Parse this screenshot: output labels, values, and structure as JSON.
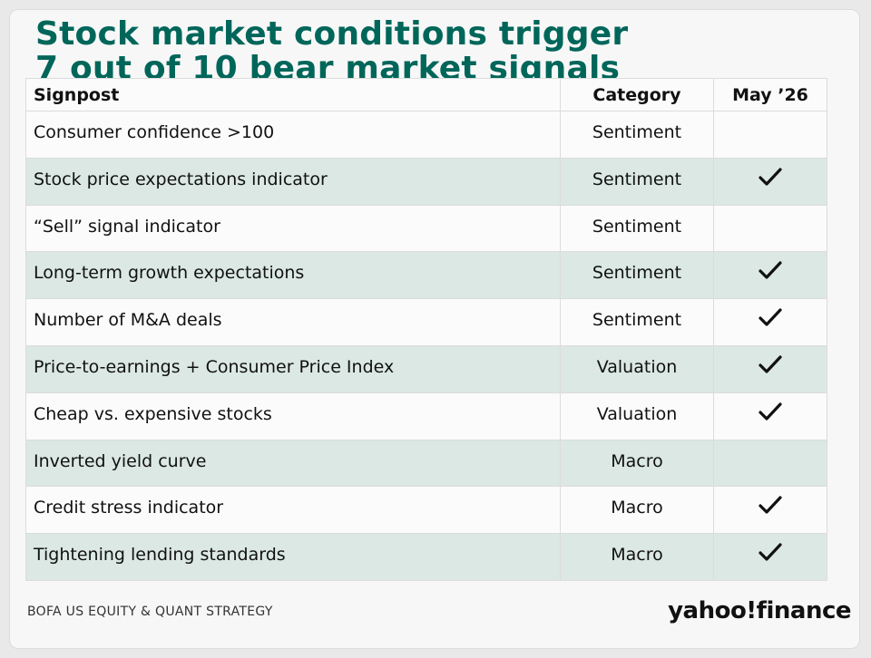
{
  "title": {
    "line1": "Stock market conditions trigger",
    "line2": "7 out of 10 bear market signals"
  },
  "chart_data": {
    "type": "table",
    "columns": [
      "Signpost",
      "Category",
      "May ’26"
    ],
    "rows": [
      {
        "signpost": "Consumer confidence >100",
        "category": "Sentiment",
        "triggered": false
      },
      {
        "signpost": "Stock price expectations indicator",
        "category": "Sentiment",
        "triggered": true
      },
      {
        "signpost": "“Sell” signal indicator",
        "category": "Sentiment",
        "triggered": false
      },
      {
        "signpost": "Long-term growth expectations",
        "category": "Sentiment",
        "triggered": true
      },
      {
        "signpost": "Number of M&A deals",
        "category": "Sentiment",
        "triggered": true
      },
      {
        "signpost": "Price-to-earnings + Consumer Price Index",
        "category": "Valuation",
        "triggered": true
      },
      {
        "signpost": "Cheap vs. expensive stocks",
        "category": "Valuation",
        "triggered": true
      },
      {
        "signpost": "Inverted yield curve",
        "category": "Macro",
        "triggered": false
      },
      {
        "signpost": "Credit stress indicator",
        "category": "Macro",
        "triggered": true
      },
      {
        "signpost": "Tightening lending standards",
        "category": "Macro",
        "triggered": true
      }
    ]
  },
  "footer": {
    "source": "BOFA US EQUITY & QUANT STRATEGY",
    "logo": "yahoo!finance"
  },
  "colors": {
    "title": "#00665a",
    "row_shade": "#dbe8e4",
    "row_plain": "#fbfbfb"
  },
  "icons": {
    "triggered": "checkmark-icon"
  }
}
